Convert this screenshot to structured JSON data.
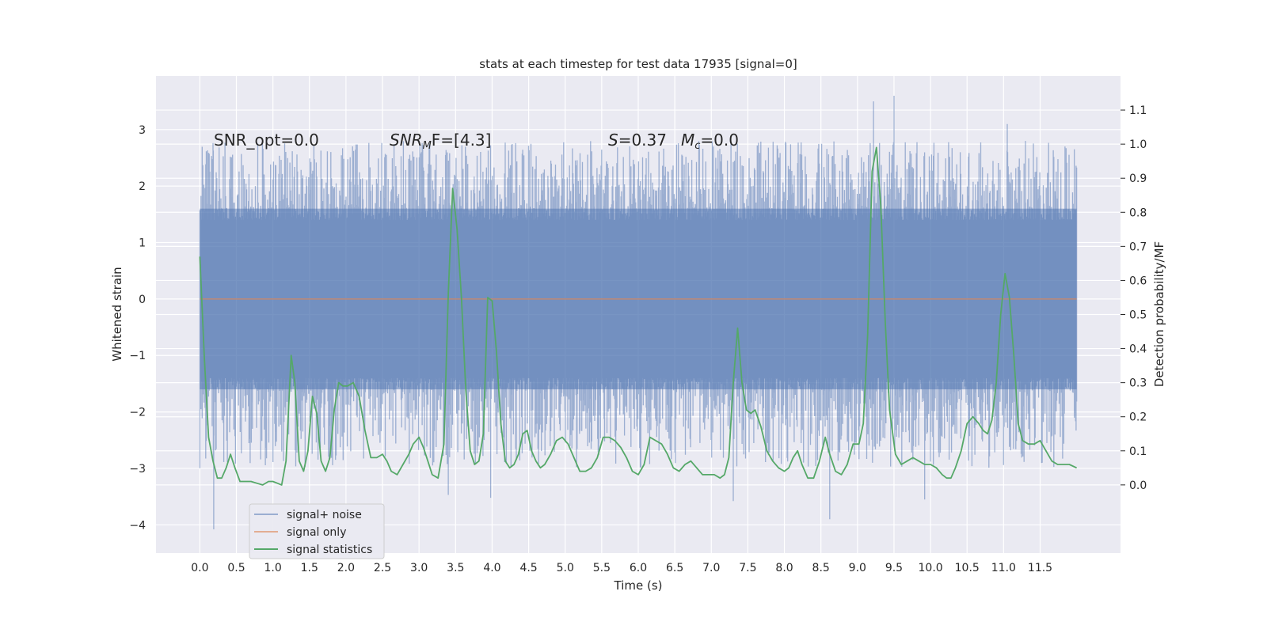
{
  "chart_data": {
    "type": "line",
    "title": "stats at each timestep for test data 17935 [signal=0]",
    "xlabel": "Time (s)",
    "ylabel_left": "Whitened strain",
    "ylabel_right": "Detection probability/MF",
    "xlim": [
      -0.6,
      12.6
    ],
    "ylim_left": [
      -4.5,
      3.95
    ],
    "ylim_right": [
      -0.2,
      1.2
    ],
    "xticks": [
      0.0,
      0.5,
      1.0,
      1.5,
      2.0,
      2.5,
      3.0,
      3.5,
      4.0,
      4.5,
      5.0,
      5.5,
      6.0,
      6.5,
      7.0,
      7.5,
      8.0,
      8.5,
      9.0,
      9.5,
      10.0,
      10.5,
      11.0,
      11.5
    ],
    "xtick_labels": [
      "0.0",
      "0.5",
      "1.0",
      "1.5",
      "2.0",
      "2.5",
      "3.0",
      "3.5",
      "4.0",
      "4.5",
      "5.0",
      "5.5",
      "6.0",
      "6.5",
      "7.0",
      "7.5",
      "8.0",
      "8.5",
      "9.0",
      "9.5",
      "10.0",
      "10.5",
      "11.0",
      "11.5"
    ],
    "yticks_left": [
      3,
      2,
      1,
      0,
      -1,
      -2,
      -3,
      -4
    ],
    "ytick_labels_left": [
      "3",
      "2",
      "1",
      "0",
      "−1",
      "−2",
      "−3",
      "−4"
    ],
    "yticks_right": [
      1.1,
      1.0,
      0.9,
      0.8,
      0.7,
      0.6,
      0.5,
      0.4,
      0.3,
      0.2,
      0.1,
      0.0
    ],
    "ytick_labels_right": [
      "1.1",
      "1.0",
      "0.9",
      "0.8",
      "0.7",
      "0.6",
      "0.5",
      "0.4",
      "0.3",
      "0.2",
      "0.1",
      "0.0"
    ],
    "grid": true,
    "legend_placement": "lower-left",
    "annotations": {
      "snr_opt": "SNR_opt=0.0",
      "snr_mf_main": "SNR",
      "snr_mf_sub": "M",
      "snr_mf_rest": "F=[4.3]",
      "s_italic": "S",
      "s_rest": "=0.37",
      "mc_main": "M",
      "mc_sub": "c",
      "mc_rest": "=0.0"
    },
    "series": [
      {
        "name": "signal+ noise",
        "axis": "left",
        "color": "#4c72b0",
        "x_range": [
          0.0,
          12.0
        ],
        "band": [
          -1.6,
          1.6
        ],
        "extremes": [
          {
            "x": 0.19,
            "v": -4.08
          },
          {
            "x": 0.18,
            "v": 2.76
          },
          {
            "x": 3.4,
            "v": -3.47
          },
          {
            "x": 3.98,
            "v": -3.52
          },
          {
            "x": 7.3,
            "v": -3.58
          },
          {
            "x": 8.62,
            "v": -3.9
          },
          {
            "x": 9.5,
            "v": 3.6
          },
          {
            "x": 9.22,
            "v": 3.5
          },
          {
            "x": 9.92,
            "v": -3.55
          },
          {
            "x": 11.05,
            "v": 3.1
          },
          {
            "x": 11.3,
            "v": 2.8
          }
        ]
      },
      {
        "name": "signal only",
        "axis": "left",
        "color": "#dd8452",
        "x": [
          0.0,
          12.0
        ],
        "values": [
          0.0,
          0.0
        ]
      },
      {
        "name": "signal statistics",
        "axis": "right",
        "color": "#55a868",
        "x": [
          0.0,
          0.06,
          0.12,
          0.18,
          0.24,
          0.3,
          0.36,
          0.42,
          0.48,
          0.55,
          0.62,
          0.7,
          0.78,
          0.86,
          0.94,
          1.0,
          1.06,
          1.12,
          1.18,
          1.25,
          1.3,
          1.36,
          1.42,
          1.48,
          1.54,
          1.6,
          1.66,
          1.72,
          1.78,
          1.84,
          1.9,
          1.96,
          2.02,
          2.1,
          2.18,
          2.26,
          2.34,
          2.42,
          2.5,
          2.56,
          2.62,
          2.7,
          2.78,
          2.86,
          2.92,
          3.0,
          3.06,
          3.12,
          3.18,
          3.26,
          3.34,
          3.4,
          3.46,
          3.52,
          3.58,
          3.64,
          3.7,
          3.76,
          3.82,
          3.88,
          3.94,
          4.0,
          4.06,
          4.12,
          4.18,
          4.24,
          4.3,
          4.36,
          4.42,
          4.48,
          4.54,
          4.6,
          4.66,
          4.72,
          4.8,
          4.88,
          4.96,
          5.04,
          5.12,
          5.2,
          5.28,
          5.36,
          5.44,
          5.52,
          5.6,
          5.68,
          5.76,
          5.84,
          5.92,
          6.0,
          6.08,
          6.16,
          6.24,
          6.32,
          6.4,
          6.48,
          6.56,
          6.64,
          6.72,
          6.8,
          6.88,
          6.96,
          7.04,
          7.12,
          7.18,
          7.24,
          7.3,
          7.36,
          7.42,
          7.48,
          7.54,
          7.6,
          7.68,
          7.76,
          7.84,
          7.92,
          8.0,
          8.06,
          8.12,
          8.18,
          8.24,
          8.32,
          8.4,
          8.48,
          8.56,
          8.62,
          8.7,
          8.78,
          8.86,
          8.94,
          9.02,
          9.08,
          9.14,
          9.2,
          9.26,
          9.32,
          9.38,
          9.44,
          9.52,
          9.6,
          9.68,
          9.76,
          9.84,
          9.92,
          10.0,
          10.08,
          10.16,
          10.22,
          10.28,
          10.34,
          10.42,
          10.5,
          10.58,
          10.66,
          10.72,
          10.78,
          10.84,
          10.9,
          10.96,
          11.02,
          11.08,
          11.14,
          11.2,
          11.26,
          11.34,
          11.42,
          11.5,
          11.58,
          11.66,
          11.74,
          11.82,
          11.9,
          12.0
        ],
        "values": [
          0.67,
          0.38,
          0.14,
          0.07,
          0.02,
          0.02,
          0.05,
          0.09,
          0.05,
          0.01,
          0.01,
          0.01,
          0.005,
          0.0,
          0.01,
          0.01,
          0.005,
          0.0,
          0.07,
          0.38,
          0.3,
          0.07,
          0.04,
          0.1,
          0.26,
          0.21,
          0.07,
          0.04,
          0.08,
          0.22,
          0.3,
          0.29,
          0.29,
          0.3,
          0.26,
          0.16,
          0.08,
          0.08,
          0.09,
          0.07,
          0.04,
          0.03,
          0.06,
          0.09,
          0.12,
          0.14,
          0.11,
          0.07,
          0.03,
          0.02,
          0.12,
          0.56,
          0.87,
          0.75,
          0.55,
          0.28,
          0.1,
          0.06,
          0.07,
          0.15,
          0.55,
          0.54,
          0.39,
          0.18,
          0.07,
          0.05,
          0.06,
          0.09,
          0.15,
          0.16,
          0.1,
          0.07,
          0.05,
          0.06,
          0.09,
          0.13,
          0.14,
          0.12,
          0.08,
          0.04,
          0.04,
          0.05,
          0.08,
          0.14,
          0.14,
          0.13,
          0.11,
          0.08,
          0.04,
          0.03,
          0.06,
          0.14,
          0.13,
          0.12,
          0.09,
          0.05,
          0.04,
          0.06,
          0.07,
          0.05,
          0.03,
          0.03,
          0.03,
          0.02,
          0.03,
          0.08,
          0.3,
          0.46,
          0.3,
          0.22,
          0.21,
          0.22,
          0.17,
          0.1,
          0.07,
          0.05,
          0.04,
          0.05,
          0.08,
          0.1,
          0.06,
          0.02,
          0.02,
          0.07,
          0.14,
          0.09,
          0.04,
          0.03,
          0.06,
          0.12,
          0.12,
          0.18,
          0.44,
          0.92,
          0.99,
          0.82,
          0.48,
          0.22,
          0.09,
          0.06,
          0.07,
          0.08,
          0.07,
          0.06,
          0.06,
          0.05,
          0.03,
          0.02,
          0.02,
          0.05,
          0.1,
          0.18,
          0.2,
          0.18,
          0.16,
          0.15,
          0.19,
          0.3,
          0.5,
          0.62,
          0.55,
          0.38,
          0.18,
          0.13,
          0.12,
          0.12,
          0.13,
          0.1,
          0.07,
          0.06,
          0.06,
          0.06,
          0.05
        ]
      }
    ]
  }
}
